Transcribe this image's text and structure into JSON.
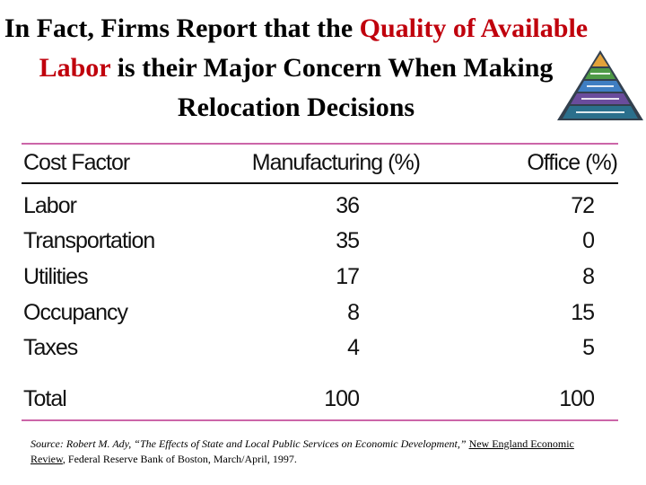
{
  "title": {
    "part1": "In Fact, Firms Report that the ",
    "highlight": "Quality of Available Labor",
    "part2": " is their Major Concern When Making Relocation Decisions",
    "highlight_color": "#c0000c"
  },
  "table": {
    "headers": [
      "Cost Factor",
      "Manufacturing (%)",
      "Office (%)"
    ],
    "rows": [
      [
        "Labor",
        "36",
        "72"
      ],
      [
        "Transportation",
        "35",
        "0"
      ],
      [
        "Utilities",
        "17",
        "8"
      ],
      [
        "Occupancy",
        "8",
        "15"
      ],
      [
        "Taxes",
        "4",
        "5"
      ]
    ],
    "total": [
      "Total",
      "100",
      "100"
    ]
  },
  "source": {
    "prefix": "Source: Robert M. Ady, “The Effects of State and Local Public Services on Economic Development,” ",
    "journal": "New England Economic Review",
    "suffix": ", Federal Reserve Bank of Boston, March/April, 1997."
  },
  "decoration": {
    "icon": "pyramid-icon",
    "rule_color": "#cc66a8"
  }
}
